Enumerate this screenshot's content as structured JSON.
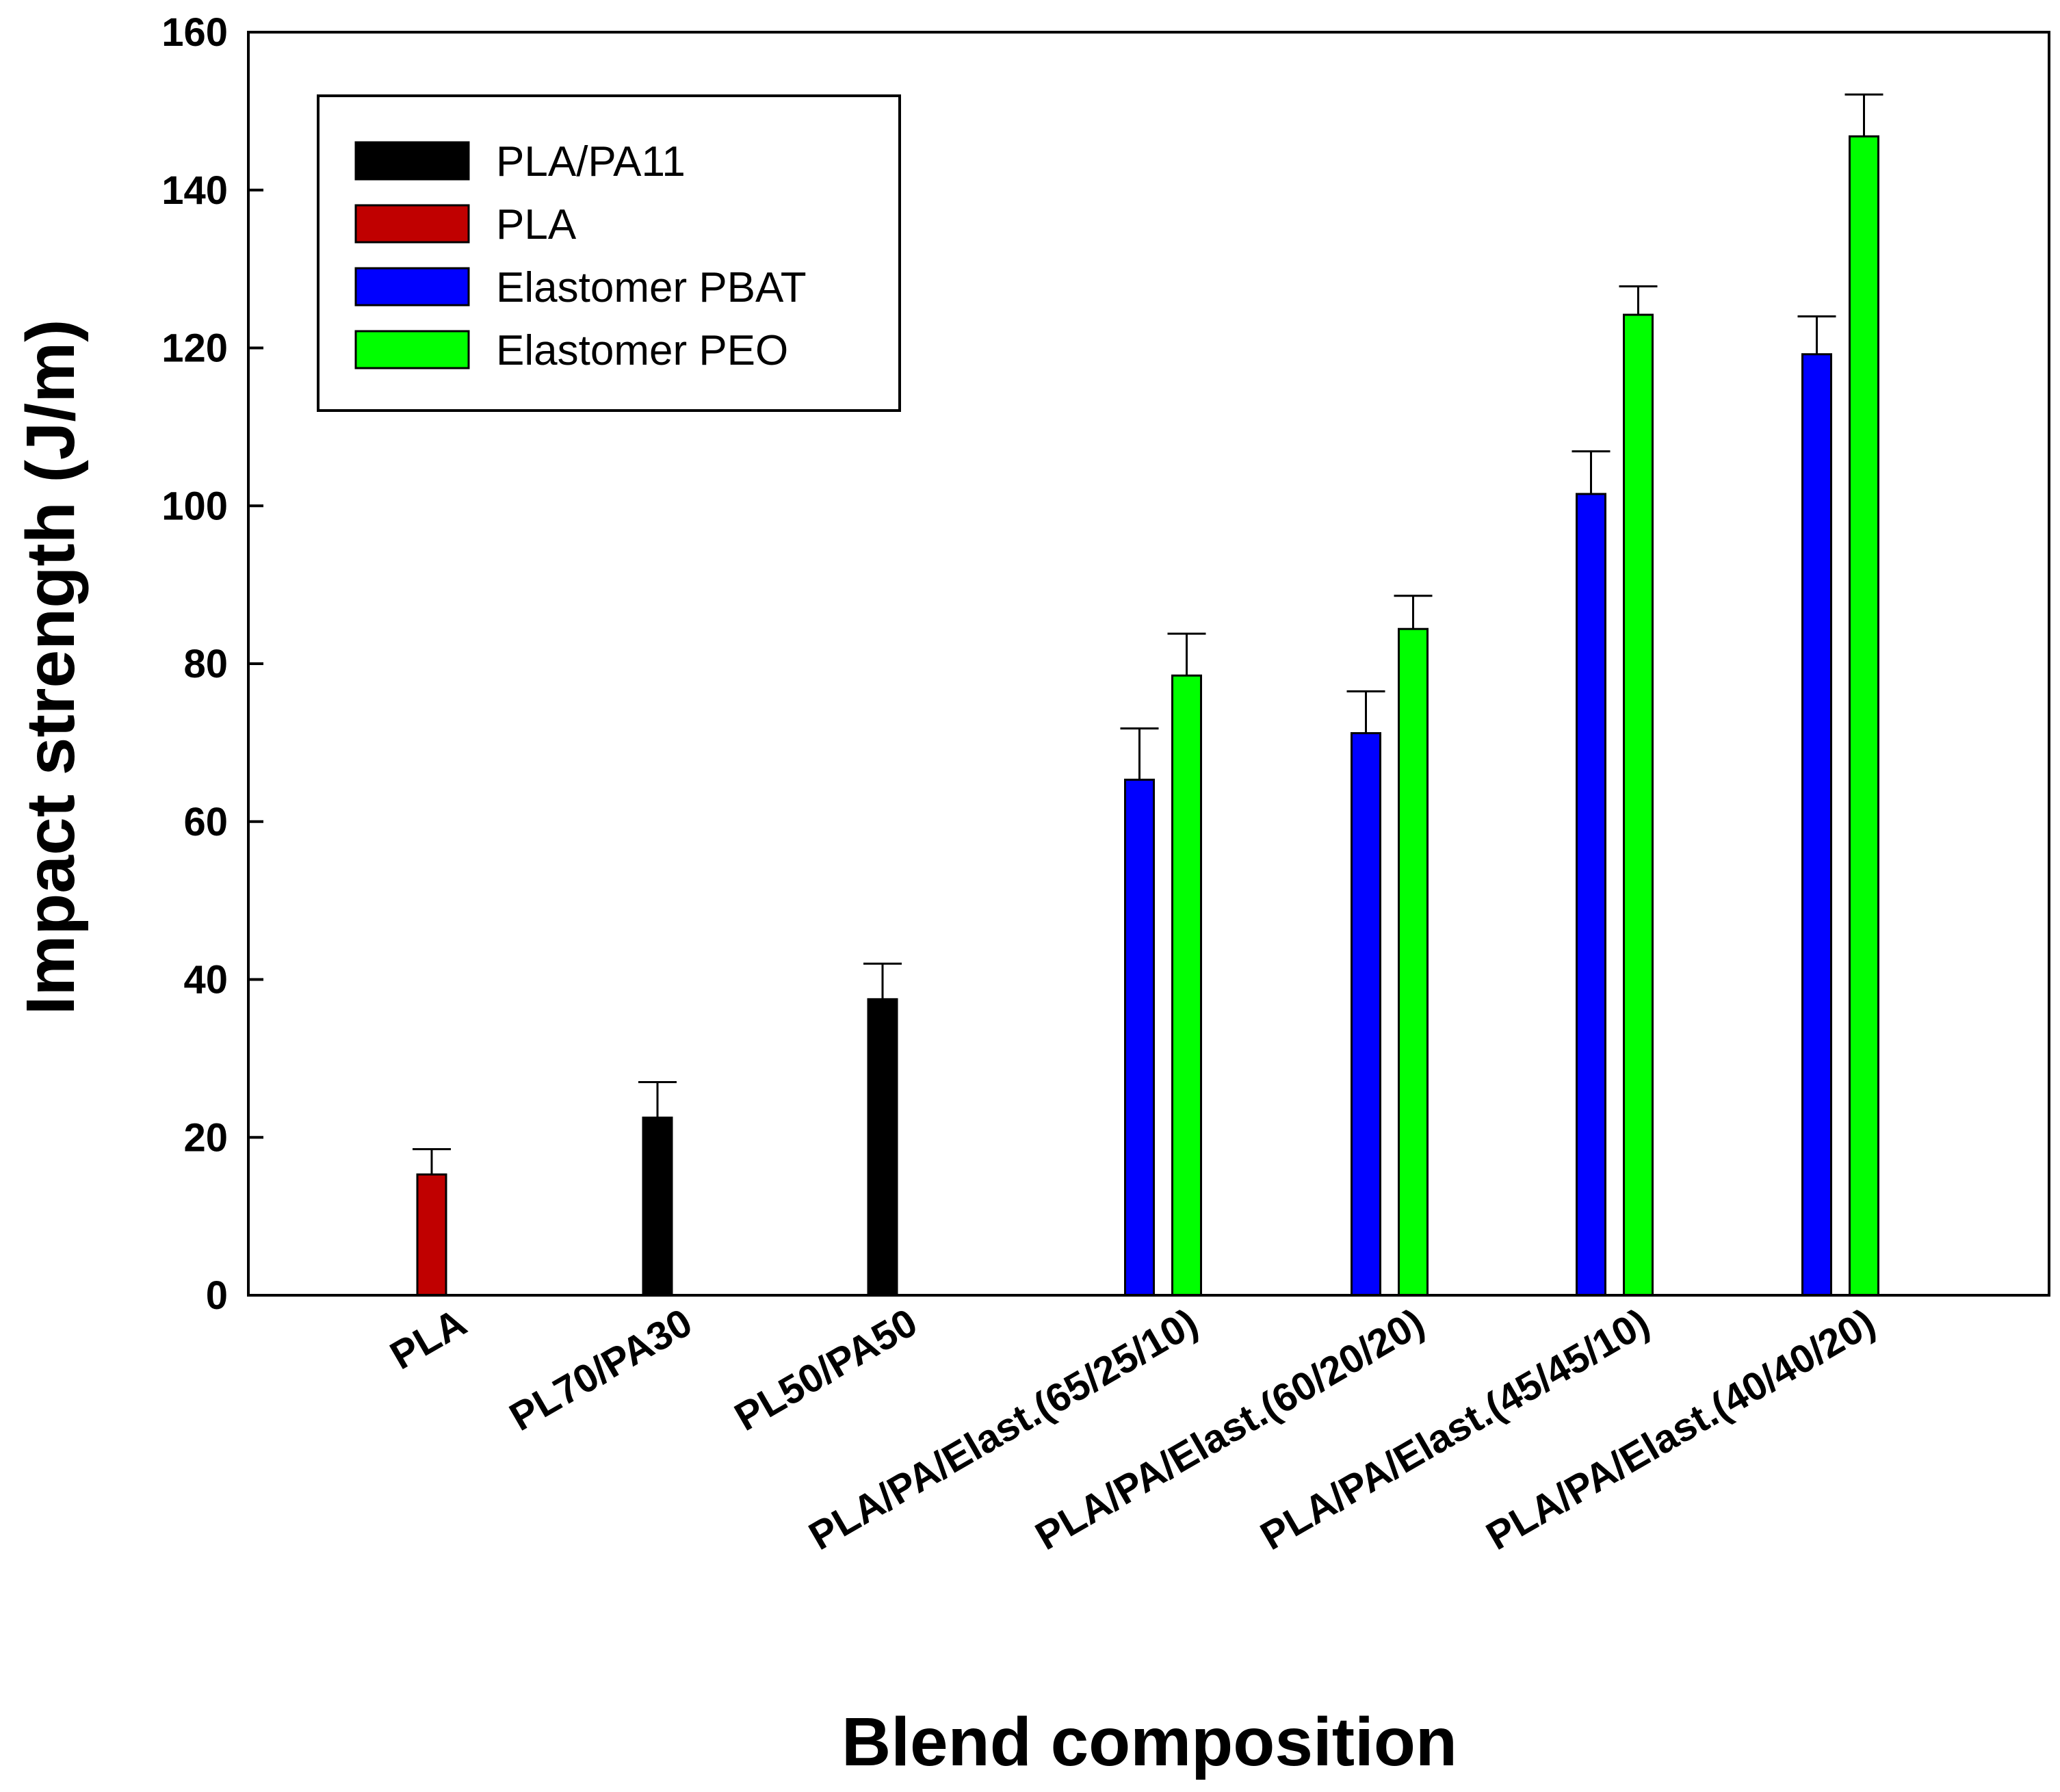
{
  "chart_data": {
    "type": "bar",
    "title": "",
    "xlabel": "Blend composition",
    "ylabel": "Impact strength (J/m)",
    "ylim": [
      0,
      160
    ],
    "yticks": [
      0,
      20,
      40,
      60,
      80,
      100,
      120,
      140,
      160
    ],
    "grid": false,
    "legend_position": "top-left",
    "categories": [
      "PLA",
      "PL70/PA30",
      "PL50/PA50",
      "PLA/PA/Elast.(65/25/10)",
      "PLA/PA/Elast.(60/20/20)",
      "PLA/PA/Elast.(45/45/10)",
      "PLA/PA/Elast.(40/40/20)"
    ],
    "series": [
      {
        "name": "PLA/PA11",
        "color": "#000000",
        "values": [
          null,
          22.5,
          37.5,
          null,
          null,
          null,
          null
        ],
        "errors": [
          null,
          4.5,
          4.5,
          null,
          null,
          null,
          null
        ]
      },
      {
        "name": "PLA",
        "color": "#c00000",
        "values": [
          15.3,
          null,
          null,
          null,
          null,
          null,
          null
        ],
        "errors": [
          3.2,
          null,
          null,
          null,
          null,
          null,
          null
        ]
      },
      {
        "name": "Elastomer PBAT",
        "color": "#0000ff",
        "values": [
          null,
          null,
          null,
          65.3,
          71.2,
          101.5,
          119.2
        ],
        "errors": [
          null,
          null,
          null,
          6.5,
          5.3,
          5.4,
          4.8
        ]
      },
      {
        "name": "Elastomer PEO",
        "color": "#00ff00",
        "values": [
          null,
          null,
          null,
          78.5,
          84.4,
          124.2,
          146.8
        ],
        "errors": [
          null,
          null,
          null,
          5.3,
          4.2,
          3.6,
          5.3
        ]
      }
    ]
  }
}
